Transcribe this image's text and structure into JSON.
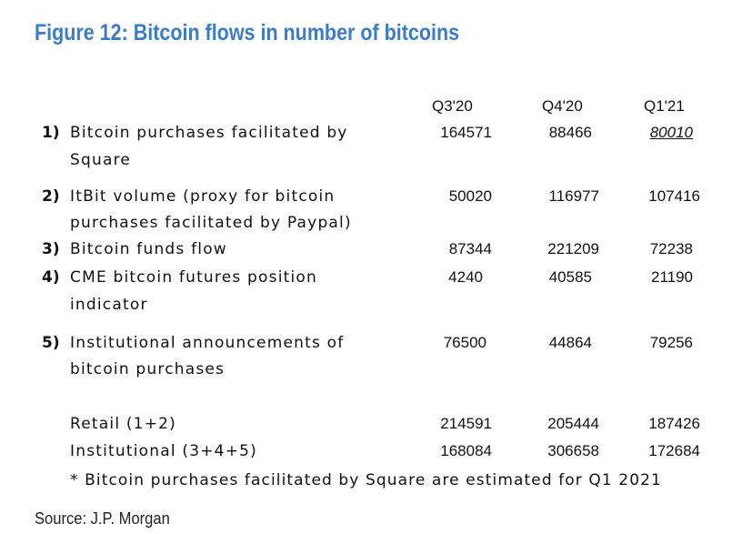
{
  "title": "Figure 12: Bitcoin flows in number of bitcoins",
  "columns": [
    "Q3'20",
    "Q4'20",
    "Q1'21"
  ],
  "rows": [
    {
      "index": "1)",
      "label_line1": "Bitcoin purchases facilitated by",
      "label_line2": "Square",
      "values": [
        "164571",
        "88466",
        "80010"
      ]
    },
    {
      "index": "2)",
      "label_line1": "ItBit volume (proxy for bitcoin",
      "label_line2": "purchases facilitated by Paypal)",
      "values": [
        "50020",
        "116977",
        "107416"
      ]
    },
    {
      "index": "3)",
      "label_line1": "Bitcoin funds flow",
      "label_line2": "",
      "values": [
        "87344",
        "221209",
        "72238"
      ]
    },
    {
      "index": "4)",
      "label_line1": "CME bitcoin futures position",
      "label_line2": "indicator",
      "values": [
        "4240",
        "40585",
        "21190"
      ]
    },
    {
      "index": "5)",
      "label_line1": "Institutional announcements of",
      "label_line2": "bitcoin purchases",
      "values": [
        "76500",
        "44864",
        "79256"
      ]
    }
  ],
  "totals": [
    {
      "label": "Retail (1+2)",
      "values": [
        "214591",
        "205444",
        "187426"
      ]
    },
    {
      "label": "Institutional (3+4+5)",
      "values": [
        "168084",
        "306658",
        "172684"
      ]
    }
  ],
  "footnote": "* Bitcoin purchases facilitated by Square are estimated for Q1 2021",
  "source": "Source: J.P. Morgan",
  "colors": {
    "title": "#3b7cc4",
    "text": "#111111"
  }
}
